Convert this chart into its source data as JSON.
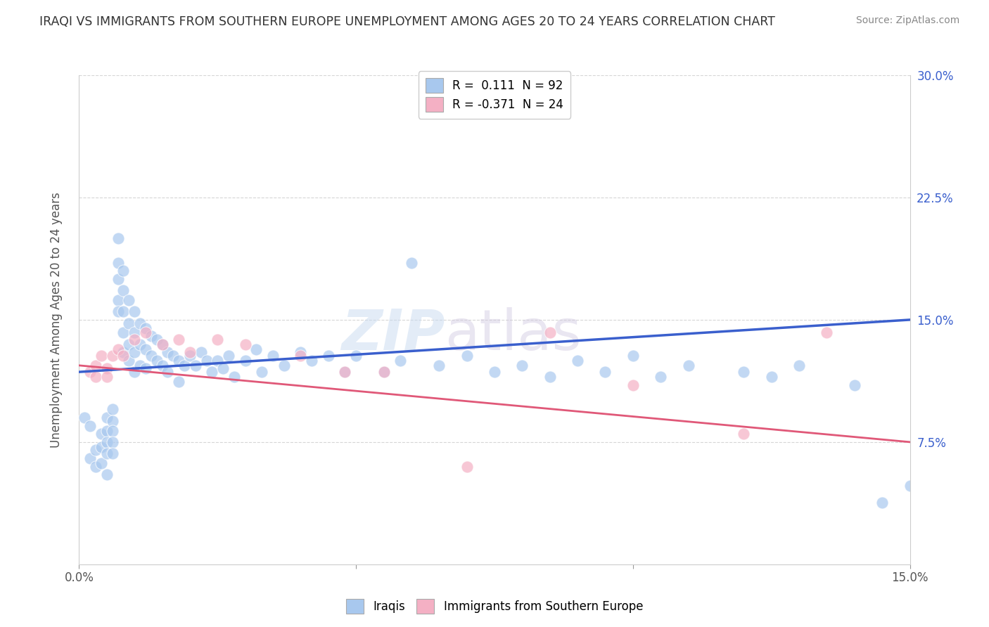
{
  "title": "IRAQI VS IMMIGRANTS FROM SOUTHERN EUROPE UNEMPLOYMENT AMONG AGES 20 TO 24 YEARS CORRELATION CHART",
  "source": "Source: ZipAtlas.com",
  "ylabel": "Unemployment Among Ages 20 to 24 years",
  "xlim": [
    0.0,
    0.15
  ],
  "ylim": [
    0.0,
    0.3
  ],
  "xtick_positions": [
    0.0,
    0.05,
    0.1,
    0.15
  ],
  "xtick_labels": [
    "0.0%",
    "",
    "",
    "15.0%"
  ],
  "ytick_positions": [
    0.075,
    0.15,
    0.225,
    0.3
  ],
  "ytick_labels": [
    "7.5%",
    "15.0%",
    "22.5%",
    "30.0%"
  ],
  "color_iraqi": "#a8c8ee",
  "color_southern": "#f4b0c4",
  "color_line_iraqi": "#3a5fcd",
  "color_line_southern": "#e05878",
  "iraqi_line_x0": 0.0,
  "iraqi_line_y0": 0.118,
  "iraqi_line_x1": 0.15,
  "iraqi_line_y1": 0.15,
  "southern_line_x0": 0.0,
  "southern_line_y0": 0.122,
  "southern_line_x1": 0.15,
  "southern_line_y1": 0.075,
  "legend_label1": "R =  0.111  N = 92",
  "legend_label2": "R = -0.371  N = 24",
  "bottom_label1": "Iraqis",
  "bottom_label2": "Immigrants from Southern Europe",
  "iraqi_x": [
    0.001,
    0.002,
    0.002,
    0.003,
    0.003,
    0.004,
    0.004,
    0.004,
    0.005,
    0.005,
    0.005,
    0.005,
    0.005,
    0.006,
    0.006,
    0.006,
    0.006,
    0.006,
    0.007,
    0.007,
    0.007,
    0.007,
    0.007,
    0.008,
    0.008,
    0.008,
    0.008,
    0.008,
    0.009,
    0.009,
    0.009,
    0.009,
    0.01,
    0.01,
    0.01,
    0.01,
    0.011,
    0.011,
    0.011,
    0.012,
    0.012,
    0.012,
    0.013,
    0.013,
    0.014,
    0.014,
    0.015,
    0.015,
    0.016,
    0.016,
    0.017,
    0.018,
    0.018,
    0.019,
    0.02,
    0.021,
    0.022,
    0.023,
    0.024,
    0.025,
    0.026,
    0.027,
    0.028,
    0.03,
    0.032,
    0.033,
    0.035,
    0.037,
    0.04,
    0.042,
    0.045,
    0.048,
    0.05,
    0.055,
    0.058,
    0.06,
    0.065,
    0.07,
    0.075,
    0.08,
    0.085,
    0.09,
    0.095,
    0.1,
    0.105,
    0.11,
    0.12,
    0.125,
    0.13,
    0.14,
    0.145,
    0.15
  ],
  "iraqi_y": [
    0.09,
    0.085,
    0.065,
    0.07,
    0.06,
    0.08,
    0.072,
    0.062,
    0.09,
    0.082,
    0.075,
    0.068,
    0.055,
    0.095,
    0.088,
    0.082,
    0.075,
    0.068,
    0.2,
    0.185,
    0.175,
    0.162,
    0.155,
    0.18,
    0.168,
    0.155,
    0.142,
    0.13,
    0.162,
    0.148,
    0.135,
    0.125,
    0.155,
    0.142,
    0.13,
    0.118,
    0.148,
    0.135,
    0.122,
    0.145,
    0.132,
    0.12,
    0.14,
    0.128,
    0.138,
    0.125,
    0.135,
    0.122,
    0.13,
    0.118,
    0.128,
    0.125,
    0.112,
    0.122,
    0.128,
    0.122,
    0.13,
    0.125,
    0.118,
    0.125,
    0.12,
    0.128,
    0.115,
    0.125,
    0.132,
    0.118,
    0.128,
    0.122,
    0.13,
    0.125,
    0.128,
    0.118,
    0.128,
    0.118,
    0.125,
    0.185,
    0.122,
    0.128,
    0.118,
    0.122,
    0.115,
    0.125,
    0.118,
    0.128,
    0.115,
    0.122,
    0.118,
    0.115,
    0.122,
    0.11,
    0.038,
    0.048
  ],
  "southern_x": [
    0.002,
    0.003,
    0.003,
    0.004,
    0.005,
    0.005,
    0.006,
    0.007,
    0.008,
    0.01,
    0.012,
    0.015,
    0.018,
    0.02,
    0.025,
    0.03,
    0.04,
    0.048,
    0.055,
    0.07,
    0.085,
    0.1,
    0.12,
    0.135
  ],
  "southern_y": [
    0.118,
    0.122,
    0.115,
    0.128,
    0.12,
    0.115,
    0.128,
    0.132,
    0.128,
    0.138,
    0.142,
    0.135,
    0.138,
    0.13,
    0.138,
    0.135,
    0.128,
    0.118,
    0.118,
    0.06,
    0.142,
    0.11,
    0.08,
    0.142
  ]
}
